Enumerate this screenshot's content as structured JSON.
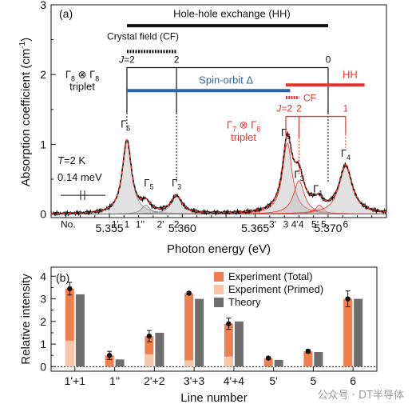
{
  "chart_data": [
    {
      "type": "line",
      "panel_label": "(a)",
      "xlabel": "Photon energy (eV)",
      "ylabel": "Absorption coefficient (cm",
      "ylabel_sup": "-1",
      "ylabel_end": ")",
      "xlim": [
        5.351,
        5.374
      ],
      "ylim": [
        -0.05,
        3.0
      ],
      "x_ticks": [
        5.355,
        5.36,
        5.365,
        5.37
      ],
      "x_tick_labels": [
        "5.355",
        "5.360",
        "5.365",
        "5.370"
      ],
      "y_ticks": [
        0,
        1,
        2,
        3
      ],
      "y_tick_labels": [
        "0",
        "1",
        "2",
        "3"
      ],
      "series": [
        {
          "role": "experiment",
          "color": "#111111",
          "style": "solid"
        },
        {
          "role": "fit",
          "color": "#e8322a",
          "style": "dashed"
        }
      ],
      "peaks": [
        {
          "center": 5.3562,
          "height": 1.05,
          "width": 0.00038,
          "group": "gamma8"
        },
        {
          "center": 5.3575,
          "height": 0.13,
          "width": 0.00035,
          "group": "gamma8"
        },
        {
          "center": 5.3596,
          "height": 0.25,
          "width": 0.00045,
          "group": "gamma8"
        },
        {
          "center": 5.3672,
          "height": 1.02,
          "width": 0.0004,
          "group": "gamma7"
        },
        {
          "center": 5.368,
          "height": 0.48,
          "width": 0.00045,
          "group": "gamma7"
        },
        {
          "center": 5.369,
          "height": 0.06,
          "width": 0.0003,
          "group": "gamma7"
        },
        {
          "center": 5.3694,
          "height": 0.13,
          "width": 0.0003,
          "group": "gamma7"
        },
        {
          "center": 5.3712,
          "height": 0.68,
          "width": 0.00055,
          "group": "gamma7"
        }
      ],
      "gamma_labels": [
        {
          "x": 5.3561,
          "y": 1.24,
          "text": "Γ5"
        },
        {
          "x": 5.3577,
          "y": 0.4,
          "text": "Γ5"
        },
        {
          "x": 5.3596,
          "y": 0.4,
          "text": "Γ3"
        },
        {
          "x": 5.3671,
          "y": 1.12,
          "text": "Γ5"
        },
        {
          "x": 5.368,
          "y": 0.52,
          "text": "Γ3"
        },
        {
          "x": 5.3693,
          "y": 0.31,
          "text": "Γ1"
        },
        {
          "x": 5.3712,
          "y": 0.82,
          "text": "Γ4"
        }
      ],
      "line_numbers": {
        "prefix": "No.",
        "items": [
          {
            "x": 5.3554,
            "text": "1'"
          },
          {
            "x": 5.3562,
            "text": "1"
          },
          {
            "x": 5.3571,
            "text": "1''"
          },
          {
            "x": 5.3585,
            "text": "2'"
          },
          {
            "x": 5.3596,
            "text": "2"
          },
          {
            "x": 5.3662,
            "text": "3'"
          },
          {
            "x": 5.3671,
            "text": "3"
          },
          {
            "x": 5.3679,
            "text": "4'4"
          },
          {
            "x": 5.3691,
            "text": "5'"
          },
          {
            "x": 5.3697,
            "text": "5"
          },
          {
            "x": 5.3712,
            "text": "6"
          }
        ]
      },
      "annotations": {
        "hh_text": "Hole-hole exchange (HH)",
        "cf_text": "Crystal field (CF)",
        "j_black": [
          "J=2",
          "2",
          "0"
        ],
        "gamma8_text": "Γ8 ⊗ Γ8",
        "triplet_text": "triplet",
        "spin_orbit_text": "Spin-orbit Δ",
        "hh_red_text": "HH",
        "cf_red_text": "CF",
        "j_red": [
          "J=2",
          "2",
          "1"
        ],
        "gamma7_text": "Γ7 ⊗ Γ8",
        "triplet_red_text": "triplet",
        "temperature": "T=2 K",
        "resolution": "0.14 meV",
        "colors": {
          "black": "#111111",
          "blue": "#2c63ad",
          "red": "#e8322a"
        }
      }
    },
    {
      "type": "bar",
      "panel_label": "(b)",
      "xlabel": "Line number",
      "ylabel": "Relative intensity",
      "ylim": [
        -0.2,
        4.4
      ],
      "y_ticks": [
        0,
        1,
        2,
        3,
        4
      ],
      "y_tick_labels": [
        "0",
        "1",
        "2",
        "3",
        "4"
      ],
      "categories": [
        "1'+1",
        "1''",
        "2'+2",
        "3'+3",
        "4'+4",
        "5'",
        "5",
        "6"
      ],
      "series": [
        {
          "name": "Experiment (Total)",
          "color": "#f07f4f",
          "values": [
            3.45,
            0.5,
            1.35,
            3.25,
            1.9,
            0.38,
            0.68,
            3.0
          ],
          "errors": [
            0.28,
            0.18,
            0.25,
            0.06,
            0.25,
            0.05,
            0.08,
            0.35
          ]
        },
        {
          "name": "Experiment (Primed)",
          "color": "#f6c6a8",
          "values": [
            1.15,
            0,
            0.55,
            0.28,
            0.45,
            0,
            0,
            0
          ]
        },
        {
          "name": "Theory",
          "color": "#6e6e6e",
          "values": [
            3.2,
            0.32,
            1.5,
            3.0,
            2.0,
            0.3,
            0.65,
            3.0
          ]
        }
      ],
      "dotted_zero_line": true
    }
  ],
  "watermark": "公众号 · DT半导体"
}
